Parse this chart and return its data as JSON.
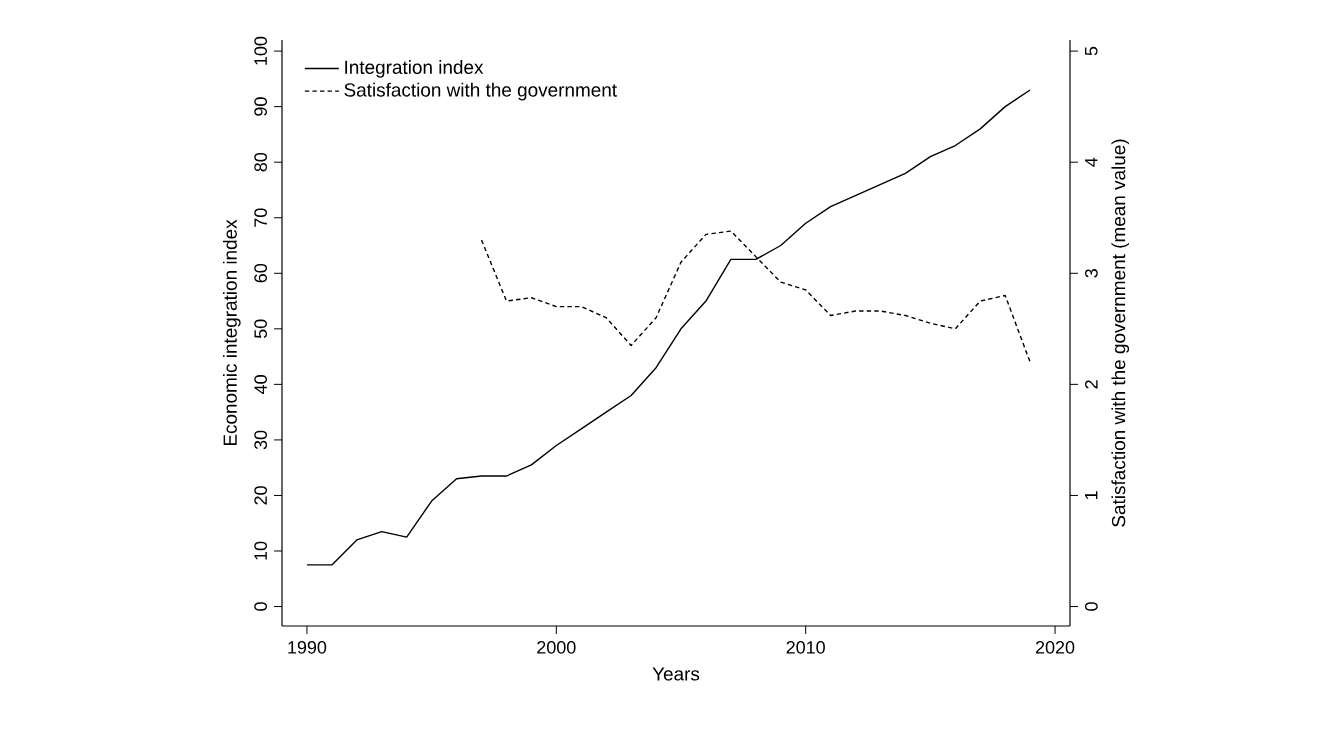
{
  "chart_data": {
    "type": "line",
    "xlabel": "Years",
    "ylabel": "Economic integration index",
    "y2label": "Satisfaction with the government  (mean value)",
    "xlim": [
      1989,
      2020.6
    ],
    "xticks": [
      1990,
      2000,
      2010,
      2020
    ],
    "ylim": [
      -3.5,
      102
    ],
    "yticks": [
      0,
      10,
      20,
      30,
      40,
      50,
      60,
      70,
      80,
      90,
      100
    ],
    "y2lim": [
      -0.175,
      5.1
    ],
    "y2ticks": [
      0,
      1,
      2,
      3,
      4,
      5
    ],
    "grid": false,
    "legend": "top left",
    "marker": "none",
    "series": [
      {
        "name": "Integration index",
        "color": "#000000",
        "line_style": "solid",
        "x": [
          1990,
          1991,
          1992,
          1993,
          1994,
          1995,
          1996,
          1997,
          1998,
          1999,
          2000,
          2001,
          2002,
          2003,
          2004,
          2005,
          2006,
          2007,
          2008,
          2009,
          2010,
          2011,
          2012,
          2013,
          2014,
          2015,
          2016,
          2017,
          2018,
          2019
        ],
        "values": [
          7.5,
          7.5,
          12,
          13.5,
          12.5,
          19,
          23,
          23.5,
          23.5,
          25.5,
          29,
          32,
          35,
          38,
          43,
          50,
          55,
          62.5,
          62.5,
          65,
          69,
          72,
          74,
          76,
          78,
          81,
          83,
          86,
          90,
          93
        ]
      },
      {
        "name": "Satisfaction with the government",
        "color": "#000000",
        "line_style": "dashed",
        "axis": "y2",
        "x": [
          1997,
          1998,
          1999,
          2000,
          2001,
          2002,
          2003,
          2004,
          2005,
          2006,
          2007,
          2008,
          2009,
          2010,
          2011,
          2012,
          2013,
          2014,
          2015,
          2016,
          2017,
          2018,
          2019
        ],
        "values": [
          3.3,
          2.75,
          2.78,
          2.7,
          2.7,
          2.6,
          2.35,
          2.6,
          3.1,
          3.35,
          3.38,
          3.15,
          2.92,
          2.85,
          2.62,
          2.66,
          2.66,
          2.62,
          2.55,
          2.5,
          2.75,
          2.8,
          2.2
        ]
      }
    ]
  }
}
